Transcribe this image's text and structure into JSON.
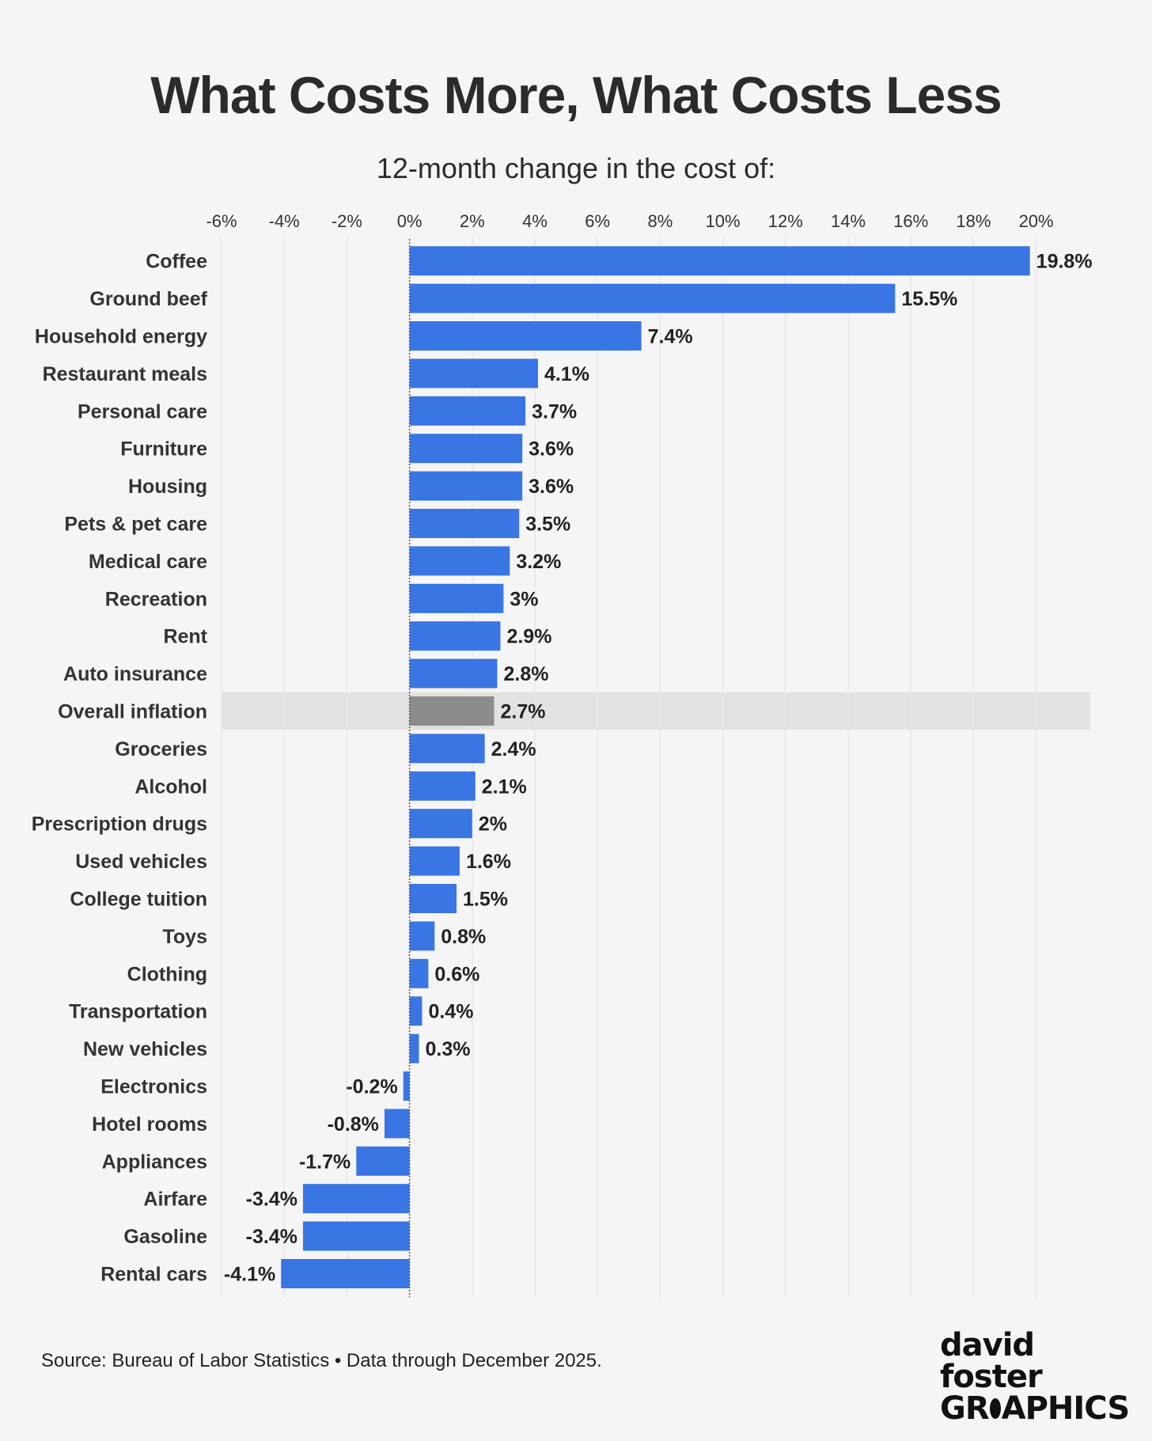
{
  "title": "What Costs More, What Costs Less",
  "subtitle": "12-month change in the cost of:",
  "source": "Source: Bureau of Labor Statistics • Data through December 2025.",
  "logo": {
    "line1": "david foster",
    "line2a": "GR",
    "line2b": "APHICS"
  },
  "colors": {
    "bar": "#3a75e4",
    "highlight_bar": "#8c8c8c",
    "highlight_band": "#e2e2e2"
  },
  "chart_data": {
    "type": "bar",
    "orientation": "horizontal",
    "categories": [
      "Coffee",
      "Ground beef",
      "Household energy",
      "Restaurant meals",
      "Personal care",
      "Furniture",
      "Housing",
      "Pets & pet care",
      "Medical care",
      "Recreation",
      "Rent",
      "Auto insurance",
      "Overall inflation",
      "Groceries",
      "Alcohol",
      "Prescription drugs",
      "Used vehicles",
      "College tuition",
      "Toys",
      "Clothing",
      "Transportation",
      "New vehicles",
      "Electronics",
      "Hotel rooms",
      "Appliances",
      "Airfare",
      "Gasoline",
      "Rental cars"
    ],
    "values": [
      19.8,
      15.5,
      7.4,
      4.1,
      3.7,
      3.6,
      3.6,
      3.5,
      3.2,
      3,
      2.9,
      2.8,
      2.7,
      2.4,
      2.1,
      2,
      1.6,
      1.5,
      0.8,
      0.6,
      0.4,
      0.3,
      -0.2,
      -0.8,
      -1.7,
      -3.4,
      -3.4,
      -4.1
    ],
    "value_labels": [
      "19.8%",
      "15.5%",
      "7.4%",
      "4.1%",
      "3.7%",
      "3.6%",
      "3.6%",
      "3.5%",
      "3.2%",
      "3%",
      "2.9%",
      "2.8%",
      "2.7%",
      "2.4%",
      "2.1%",
      "2%",
      "1.6%",
      "1.5%",
      "0.8%",
      "0.6%",
      "0.4%",
      "0.3%",
      "-0.2%",
      "-0.8%",
      "-1.7%",
      "-3.4%",
      "-3.4%",
      "-4.1%"
    ],
    "highlight": "Overall inflation",
    "xlim": [
      -6,
      22
    ],
    "xticks": [
      -6,
      -4,
      -2,
      0,
      2,
      4,
      6,
      8,
      10,
      12,
      14,
      16,
      18,
      20
    ],
    "xtick_labels": [
      "-6%",
      "-4%",
      "-2%",
      "0%",
      "2%",
      "4%",
      "6%",
      "8%",
      "10%",
      "12%",
      "14%",
      "16%",
      "18%",
      "20%"
    ],
    "grid": true,
    "axis_position": "top"
  }
}
